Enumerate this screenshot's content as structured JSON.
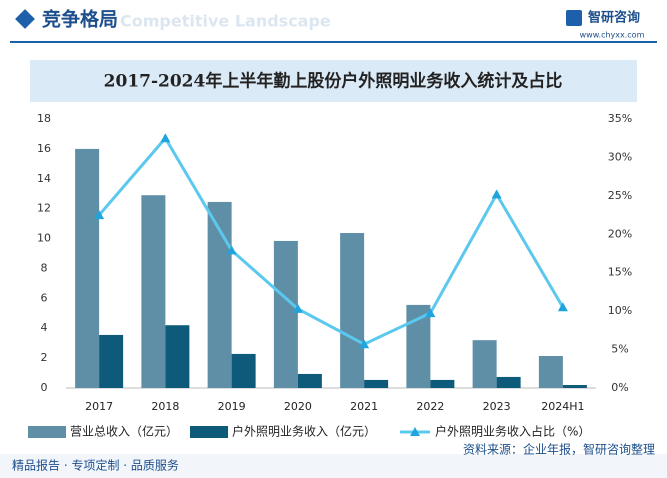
{
  "header": {
    "title": "竞争格局",
    "subtitle": "Competitive Landscape",
    "brand": "智研咨询",
    "url": "www.chyxx.com"
  },
  "chart_data": {
    "type": "bar_line",
    "title": "2017-2024年上半年勤上股份户外照明业务收入统计及占比",
    "categories": [
      "2017",
      "2018",
      "2019",
      "2020",
      "2021",
      "2022",
      "2023",
      "2024H1"
    ],
    "series": [
      {
        "name": "营业总收入（亿元）",
        "type": "bar",
        "color": "#5f8fa6",
        "values": [
          16.0,
          12.9,
          12.45,
          9.84,
          10.37,
          5.56,
          3.2,
          2.14
        ]
      },
      {
        "name": "户外照明业务收入（亿元）",
        "type": "bar",
        "color": "#0d5a7a",
        "values": [
          3.55,
          4.2,
          2.28,
          0.94,
          0.54,
          0.54,
          0.74,
          0.2
        ]
      },
      {
        "name": "户外照明业务收入占比（%）",
        "type": "line",
        "axis": "y2",
        "color": "#5bc8ef",
        "values": [
          22.5,
          32.5,
          17.9,
          10.3,
          5.7,
          9.75,
          25.2,
          10.5
        ]
      }
    ],
    "ylim": [
      0,
      18
    ],
    "yticks": [
      0,
      2,
      4,
      6,
      8,
      10,
      12,
      14,
      16,
      18
    ],
    "y2lim": [
      0,
      35
    ],
    "y2ticks": [
      {
        "value": 0,
        "label": "0%"
      },
      {
        "value": 5,
        "label": "5%"
      },
      {
        "value": 10,
        "label": "10%"
      },
      {
        "value": 15,
        "label": "15%"
      },
      {
        "value": 20,
        "label": "20%"
      },
      {
        "value": 25,
        "label": "25%"
      },
      {
        "value": 30,
        "label": "30%"
      },
      {
        "value": 35,
        "label": "35%"
      }
    ],
    "grid": false,
    "legend": "bottom"
  },
  "footer": {
    "slogan": "精品报告 · 专项定制 · 品质服务",
    "source": "资料来源：企业年报，智研咨询整理"
  }
}
